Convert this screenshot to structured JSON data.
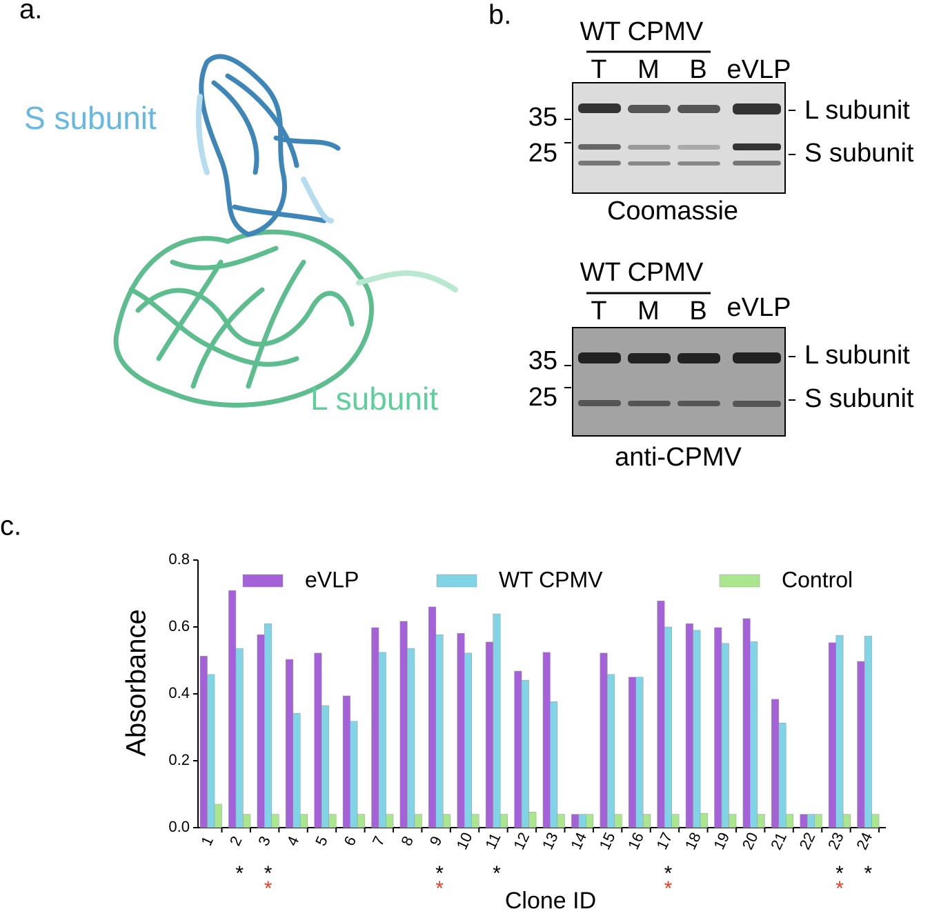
{
  "panel_a": {
    "label": "a.",
    "s_label": "S subunit",
    "l_label": "L subunit"
  },
  "panel_b": {
    "label": "b.",
    "blots": [
      {
        "group": "WT CPMV",
        "lanes": [
          "T",
          "M",
          "B",
          "eVLP"
        ],
        "markers": [
          "35",
          "25"
        ],
        "bands": [
          "L subunit",
          "S subunit"
        ],
        "caption": "Coomassie"
      },
      {
        "group": "WT CPMV",
        "lanes": [
          "T",
          "M",
          "B",
          "eVLP"
        ],
        "markers": [
          "35",
          "25"
        ],
        "bands": [
          "L subunit",
          "S subunit"
        ],
        "caption": "anti-CPMV"
      }
    ]
  },
  "panel_c": {
    "label": "c."
  },
  "chart_data": {
    "type": "bar",
    "x_label": "Clone ID",
    "y_label": "Absorbance",
    "categories": [
      "1",
      "2",
      "3",
      "4",
      "5",
      "6",
      "7",
      "8",
      "9",
      "10",
      "11",
      "12",
      "13",
      "14",
      "15",
      "16",
      "17",
      "18",
      "19",
      "20",
      "21",
      "22",
      "23",
      "24"
    ],
    "series": [
      {
        "name": "eVLP",
        "color": "#a562d8",
        "values": [
          0.513,
          0.709,
          0.577,
          0.503,
          0.522,
          0.394,
          0.598,
          0.617,
          0.66,
          0.581,
          0.555,
          0.468,
          0.524,
          0.04,
          0.522,
          0.45,
          0.678,
          0.61,
          0.598,
          0.625,
          0.384,
          0.04,
          0.553,
          0.497
        ]
      },
      {
        "name": "WT CPMV",
        "color": "#80d4e6",
        "values": [
          0.458,
          0.536,
          0.61,
          0.342,
          0.365,
          0.318,
          0.524,
          0.536,
          0.577,
          0.522,
          0.639,
          0.441,
          0.377,
          0.04,
          0.458,
          0.45,
          0.6,
          0.59,
          0.551,
          0.556,
          0.313,
          0.04,
          0.575,
          0.573
        ]
      },
      {
        "name": "Control",
        "color": "#a9e68d",
        "values": [
          0.07,
          0.04,
          0.04,
          0.04,
          0.04,
          0.04,
          0.04,
          0.04,
          0.04,
          0.04,
          0.04,
          0.047,
          0.04,
          0.04,
          0.04,
          0.04,
          0.04,
          0.043,
          0.04,
          0.04,
          0.04,
          0.04,
          0.04,
          0.04
        ]
      }
    ],
    "ylim": [
      0,
      0.8
    ],
    "yticks": [
      {
        "value": 0,
        "label": "0.0"
      },
      0.2,
      0.4,
      0.6,
      0.8
    ],
    "annotations": [
      {
        "text": "*",
        "color": "#000000",
        "categories": [
          "2",
          "3",
          "9",
          "11",
          "17",
          "23",
          "24"
        ]
      },
      {
        "text": "*",
        "color": "#e8402a",
        "categories": [
          "3",
          "9",
          "17",
          "23"
        ]
      }
    ]
  }
}
